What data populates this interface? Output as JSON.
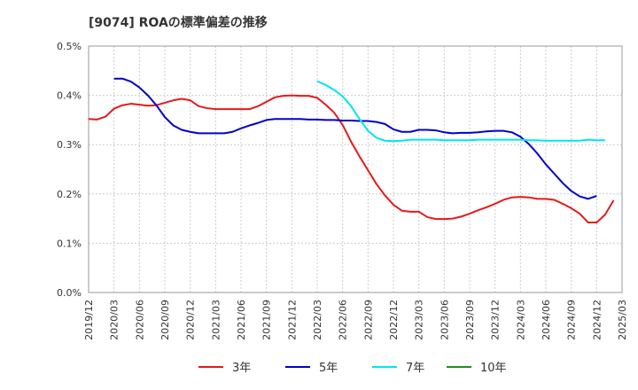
{
  "chart_data": {
    "type": "line",
    "title": "[9074]  ROAの標準偏差の推移",
    "xlabel": "",
    "ylabel": "",
    "ylim": [
      0,
      0.005
    ],
    "y_ticks": [
      0,
      0.001,
      0.002,
      0.003,
      0.004,
      0.005
    ],
    "y_tick_labels": [
      "0.0%",
      "0.1%",
      "0.2%",
      "0.3%",
      "0.4%",
      "0.5%"
    ],
    "x_tick_labels": [
      "2019/12",
      "2020/03",
      "2020/06",
      "2020/09",
      "2020/12",
      "2021/03",
      "2021/06",
      "2021/09",
      "2021/12",
      "2022/03",
      "2022/06",
      "2022/09",
      "2022/12",
      "2023/03",
      "2023/06",
      "2023/09",
      "2023/12",
      "2024/03",
      "2024/06",
      "2024/09",
      "2024/12",
      "2025/03"
    ],
    "grid": true,
    "legend_position": "bottom",
    "series": [
      {
        "name": "3年",
        "color": "#e41a1c",
        "start_index": 0,
        "values": [
          0.00352,
          0.00351,
          0.00357,
          0.00373,
          0.0038,
          0.00383,
          0.00381,
          0.00379,
          0.0038,
          0.00385,
          0.0039,
          0.00393,
          0.0039,
          0.00378,
          0.00374,
          0.00372,
          0.00372,
          0.00372,
          0.00372,
          0.00372,
          0.00378,
          0.00387,
          0.00396,
          0.00399,
          0.004,
          0.00399,
          0.00399,
          0.00395,
          0.00381,
          0.00365,
          0.0034,
          0.00306,
          0.00276,
          0.00248,
          0.0022,
          0.00197,
          0.00178,
          0.00166,
          0.00164,
          0.00164,
          0.00153,
          0.00149,
          0.00149,
          0.0015,
          0.00154,
          0.0016,
          0.00167,
          0.00173,
          0.0018,
          0.00188,
          0.00193,
          0.00194,
          0.00193,
          0.0019,
          0.0019,
          0.00188,
          0.0018,
          0.00171,
          0.0016,
          0.00142,
          0.00142,
          0.00158,
          0.00187
        ]
      },
      {
        "name": "5年",
        "color": "#0000cc",
        "start_index": 3,
        "values": [
          0.00434,
          0.00434,
          0.00428,
          0.00416,
          0.004,
          0.0038,
          0.00356,
          0.00339,
          0.0033,
          0.00326,
          0.00323,
          0.00323,
          0.00323,
          0.00323,
          0.00326,
          0.00333,
          0.00339,
          0.00344,
          0.0035,
          0.00352,
          0.00352,
          0.00352,
          0.00352,
          0.00351,
          0.00351,
          0.0035,
          0.0035,
          0.00349,
          0.00349,
          0.00348,
          0.00348,
          0.00346,
          0.00342,
          0.00331,
          0.00326,
          0.00326,
          0.0033,
          0.0033,
          0.00329,
          0.00325,
          0.00323,
          0.00324,
          0.00324,
          0.00325,
          0.00327,
          0.00328,
          0.00328,
          0.00325,
          0.00316,
          0.00301,
          0.00282,
          0.0026,
          0.00241,
          0.00222,
          0.00206,
          0.00195,
          0.0019,
          0.00196
        ]
      },
      {
        "name": "7年",
        "color": "#00e5ee",
        "start_index": 27,
        "values": [
          0.00429,
          0.00421,
          0.00411,
          0.00398,
          0.00378,
          0.00352,
          0.00328,
          0.00314,
          0.00308,
          0.00307,
          0.00308,
          0.0031,
          0.0031,
          0.0031,
          0.0031,
          0.00309,
          0.00309,
          0.00309,
          0.00309,
          0.0031,
          0.0031,
          0.0031,
          0.0031,
          0.0031,
          0.0031,
          0.00309,
          0.00309,
          0.00308,
          0.00308,
          0.00308,
          0.00308,
          0.00308,
          0.0031,
          0.00309,
          0.00309
        ]
      },
      {
        "name": "10年",
        "color": "#228b22",
        "start_index": 0,
        "values": []
      }
    ]
  }
}
